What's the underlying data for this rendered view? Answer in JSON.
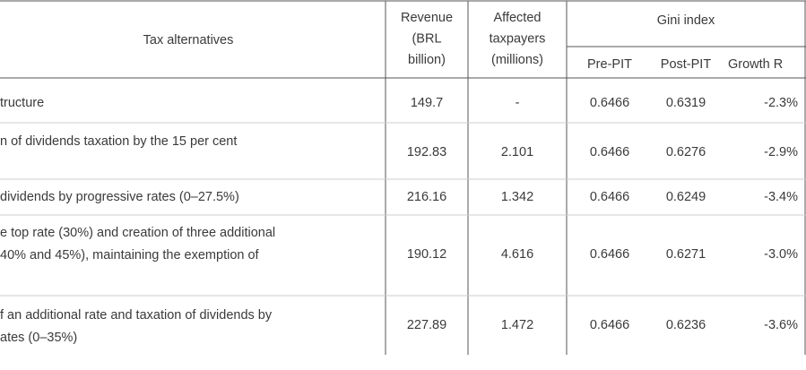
{
  "table": {
    "header": {
      "alternatives": "Tax alternatives",
      "revenue": [
        "Revenue",
        "(BRL",
        "billion)"
      ],
      "affected": [
        "Affected",
        "taxpayers",
        "(millions)"
      ],
      "gini": "Gini index",
      "gini_columns": [
        "Pre-PIT",
        "Post-PIT",
        "Growth R"
      ]
    },
    "rows": [
      {
        "label": [
          "tructure"
        ],
        "cells": [
          "149.7",
          "-",
          "0.6466",
          "0.6319",
          "-2.3%"
        ]
      },
      {
        "label": [
          "n of dividends taxation by the 15 per cent"
        ],
        "cells": [
          "192.83",
          "2.101",
          "0.6466",
          "0.6276",
          "-2.9%"
        ]
      },
      {
        "label": [
          "dividends by progressive rates (0–27.5%)"
        ],
        "cells": [
          "216.16",
          "1.342",
          "0.6466",
          "0.6249",
          "-3.4%"
        ]
      },
      {
        "label": [
          "e top rate (30%) and creation of three additional",
          "40% and 45%), maintaining the exemption of"
        ],
        "cells": [
          "190.12",
          "4.616",
          "0.6466",
          "0.6271",
          "-3.0%"
        ]
      },
      {
        "label": [
          "f an additional rate and taxation of dividends by",
          "ates (0–35%)"
        ],
        "cells": [
          "227.89",
          "1.472",
          "0.6466",
          "0.6236",
          "-3.6%"
        ]
      }
    ]
  }
}
